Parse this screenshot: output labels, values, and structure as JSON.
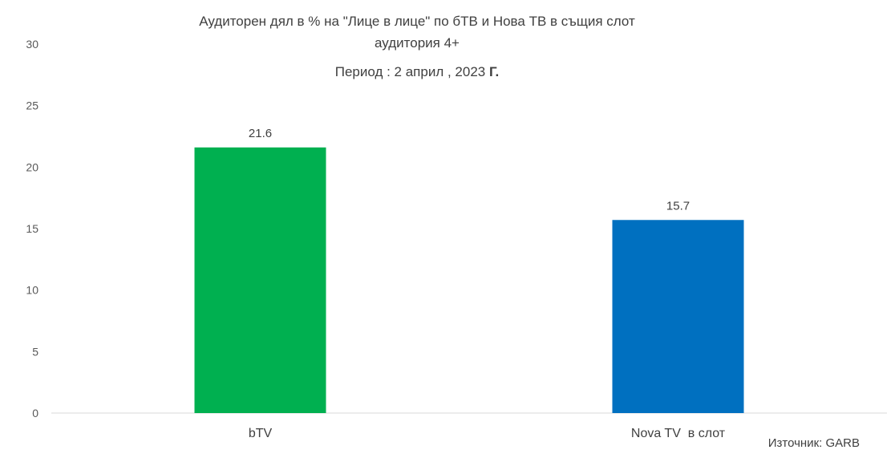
{
  "chart_data": {
    "type": "bar",
    "title_lines": [
      "Аудиторен дял в %  на \"Лице в лице\"  по бТВ и Нова ТВ в същия слот",
      "аудитория 4+"
    ],
    "subtitle": "Период : 2 април , 2023",
    "subtitle_suffix": "Г.",
    "categories": [
      "bTV",
      "Nova TV  в слот"
    ],
    "values": [
      21.6,
      15.7
    ],
    "value_labels": [
      "21.6",
      "15.7"
    ],
    "bar_colors": [
      "#00B050",
      "#0070C0"
    ],
    "ylim": [
      0,
      30
    ],
    "yticks": [
      "0",
      "5",
      "10",
      "15",
      "20",
      "25",
      "30"
    ],
    "xlabel": "",
    "ylabel": "",
    "grid": false,
    "source": "Източник: GARB"
  }
}
